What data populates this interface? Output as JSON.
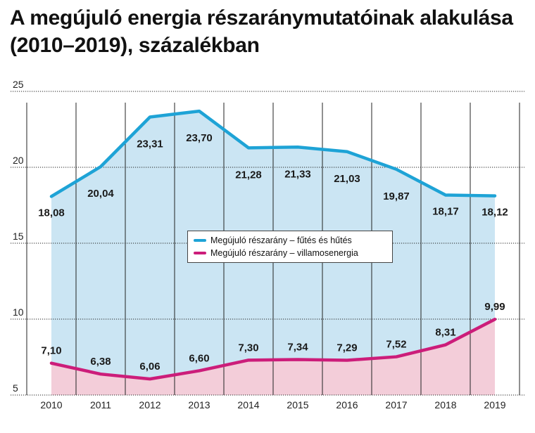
{
  "title": "A megújuló energia részaránymutatóinak alakulása (2010–2019), százalékban",
  "colors": {
    "heating": "#1ea3d6",
    "heating_fill": "#cbe5f3",
    "electricity": "#cc1d7a",
    "electricity_fill": "#f3cdd9",
    "grid": "#222222"
  },
  "chart_data": {
    "type": "area",
    "categories": [
      "2010",
      "2011",
      "2012",
      "2013",
      "2014",
      "2015",
      "2016",
      "2017",
      "2018",
      "2019"
    ],
    "y_ticks": [
      "25",
      "20",
      "15",
      "10",
      "5"
    ],
    "ylim": [
      5,
      25
    ],
    "grid": true,
    "legend_position": "center",
    "series": [
      {
        "name": "Megújuló részarány – fűtés és hűtés",
        "values": [
          18.08,
          20.04,
          23.31,
          23.7,
          21.28,
          21.33,
          21.03,
          19.87,
          18.17,
          18.12
        ],
        "labels": [
          "18,08",
          "20,04",
          "23,31",
          "23,70",
          "21,28",
          "21,33",
          "21,03",
          "19,87",
          "18,17",
          "18,12"
        ]
      },
      {
        "name": "Megújuló részarány – villamosenergia",
        "values": [
          7.1,
          6.38,
          6.06,
          6.6,
          7.3,
          7.34,
          7.29,
          7.52,
          8.31,
          9.99
        ],
        "labels": [
          "7,10",
          "6,38",
          "6,06",
          "6,60",
          "7,30",
          "7,34",
          "7,29",
          "7,52",
          "8,31",
          "9,99"
        ]
      }
    ]
  }
}
